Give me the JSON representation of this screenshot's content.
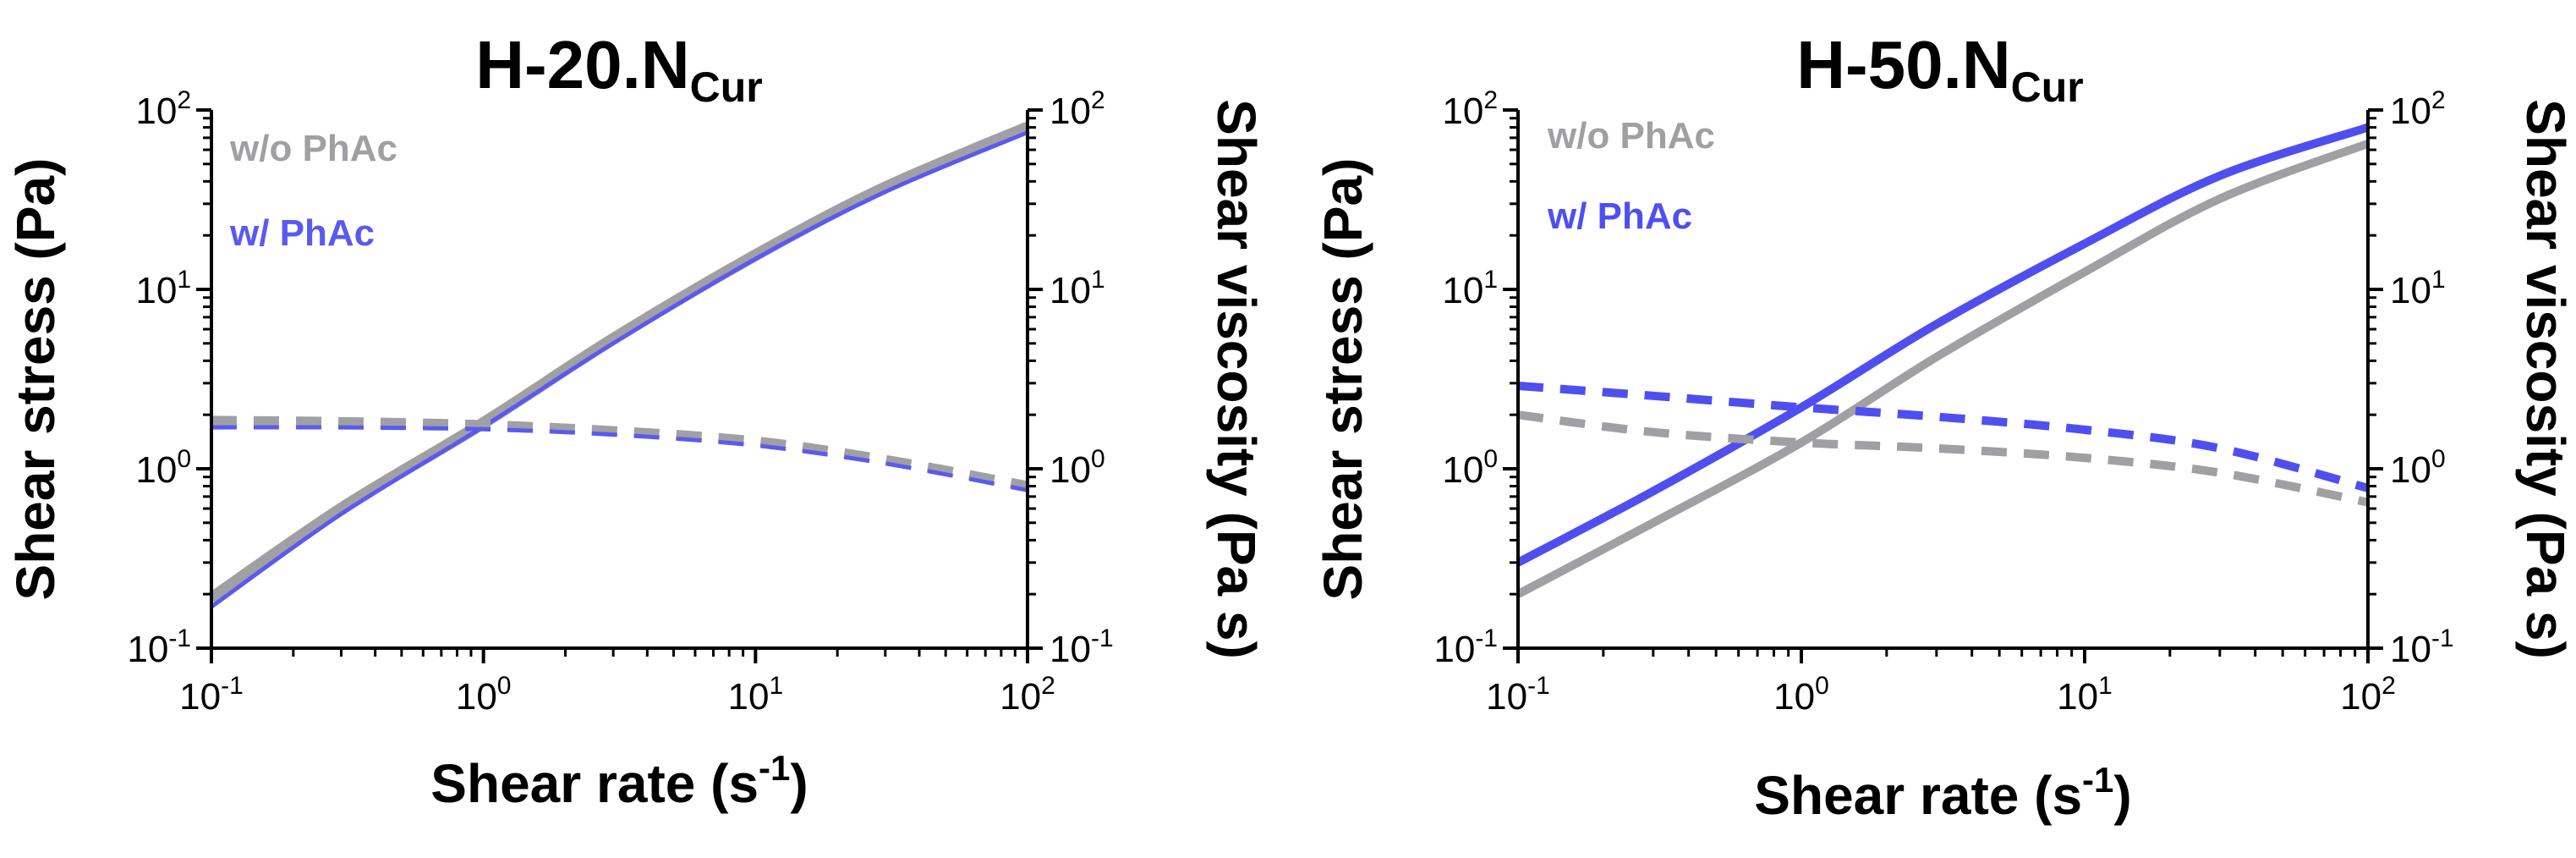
{
  "chart_data": [
    {
      "type": "line",
      "title": {
        "main": "H-20.N",
        "sub": "Cur"
      },
      "xlabel": {
        "text": "Shear rate (s",
        "sup": "-1",
        "close": ")"
      },
      "ylabel": "Shear stress (Pa)",
      "y2label": "Shear viscosity (Pa s)",
      "xscale": "log",
      "yscale": "log",
      "xlim": [
        0.1,
        100
      ],
      "ylim": [
        0.1,
        100
      ],
      "y2lim": [
        0.1,
        100
      ],
      "xticks": [
        {
          "base": "10",
          "exp": "-1"
        },
        {
          "base": "10",
          "exp": "0"
        },
        {
          "base": "10",
          "exp": "1"
        },
        {
          "base": "10",
          "exp": "2"
        }
      ],
      "yticks": [
        {
          "base": "10",
          "exp": "-1"
        },
        {
          "base": "10",
          "exp": "0"
        },
        {
          "base": "10",
          "exp": "1"
        },
        {
          "base": "10",
          "exp": "2"
        }
      ],
      "legend_position": "top-left",
      "legend": [
        {
          "label": "w/o PhAc",
          "color": "#a0a0a4"
        },
        {
          "label": "w/ PhAc",
          "color": "#5a5af0"
        }
      ],
      "series": [
        {
          "name": "w/o PhAc shear stress",
          "color": "#a0a0a4",
          "dash": false,
          "width": 14,
          "x": [
            0.1,
            0.3,
            1,
            3,
            10,
            30,
            100
          ],
          "y": [
            0.19,
            0.6,
            1.8,
            5.3,
            15.5,
            37,
            80
          ]
        },
        {
          "name": "w/ PhAc shear stress",
          "color": "#5a5af0",
          "dash": false,
          "width": 5,
          "x": [
            0.1,
            0.3,
            1,
            3,
            10,
            30,
            100
          ],
          "y": [
            0.17,
            0.56,
            1.72,
            5.0,
            14.8,
            35,
            75
          ]
        },
        {
          "name": "w/o PhAc shear viscosity",
          "color": "#a0a0a4",
          "dash": true,
          "width": 12,
          "x": [
            0.1,
            0.3,
            1,
            3,
            10,
            30,
            100
          ],
          "y": [
            1.85,
            1.82,
            1.75,
            1.62,
            1.42,
            1.12,
            0.8
          ]
        },
        {
          "name": "w/ PhAc shear viscosity",
          "color": "#5a5af0",
          "dash": true,
          "width": 5,
          "x": [
            0.1,
            0.3,
            1,
            3,
            10,
            30,
            100
          ],
          "y": [
            1.7,
            1.7,
            1.66,
            1.55,
            1.35,
            1.07,
            0.76
          ]
        }
      ]
    },
    {
      "type": "line",
      "title": {
        "main": "H-50.N",
        "sub": "Cur"
      },
      "xlabel": {
        "text": "Shear rate (s",
        "sup": "-1",
        "close": ")"
      },
      "ylabel": "Shear stress (Pa)",
      "y2label": "Shear viscosity (Pa s)",
      "xscale": "log",
      "yscale": "log",
      "xlim": [
        0.1,
        100
      ],
      "ylim": [
        0.1,
        100
      ],
      "y2lim": [
        0.1,
        100
      ],
      "xticks": [
        {
          "base": "10",
          "exp": "-1"
        },
        {
          "base": "10",
          "exp": "0"
        },
        {
          "base": "10",
          "exp": "1"
        },
        {
          "base": "10",
          "exp": "2"
        }
      ],
      "yticks": [
        {
          "base": "10",
          "exp": "-1"
        },
        {
          "base": "10",
          "exp": "0"
        },
        {
          "base": "10",
          "exp": "1"
        },
        {
          "base": "10",
          "exp": "2"
        }
      ],
      "legend_position": "top-left",
      "legend": [
        {
          "label": "w/o PhAc",
          "color": "#a0a0a4"
        },
        {
          "label": "w/ PhAc",
          "color": "#4f4ff0"
        }
      ],
      "series": [
        {
          "name": "w/o PhAc shear stress",
          "color": "#a0a0a4",
          "dash": false,
          "width": 10,
          "x": [
            0.1,
            0.3,
            1,
            3,
            10,
            30,
            100
          ],
          "y": [
            0.2,
            0.5,
            1.4,
            4.2,
            12.5,
            32,
            65
          ]
        },
        {
          "name": "w/ PhAc shear stress",
          "color": "#4f4ff0",
          "dash": false,
          "width": 10,
          "x": [
            0.1,
            0.3,
            1,
            3,
            10,
            30,
            100
          ],
          "y": [
            0.3,
            0.75,
            2.2,
            6.4,
            18,
            43,
            80
          ]
        },
        {
          "name": "w/o PhAc shear viscosity",
          "color": "#a0a0a4",
          "dash": true,
          "width": 10,
          "x": [
            0.1,
            0.3,
            1,
            3,
            10,
            30,
            100
          ],
          "y": [
            2.0,
            1.6,
            1.4,
            1.3,
            1.15,
            0.95,
            0.65
          ]
        },
        {
          "name": "w/ PhAc shear viscosity",
          "color": "#4f4ff0",
          "dash": true,
          "width": 10,
          "x": [
            0.1,
            0.3,
            1,
            3,
            10,
            30,
            100
          ],
          "y": [
            2.9,
            2.55,
            2.2,
            1.95,
            1.65,
            1.3,
            0.78
          ]
        }
      ]
    }
  ]
}
